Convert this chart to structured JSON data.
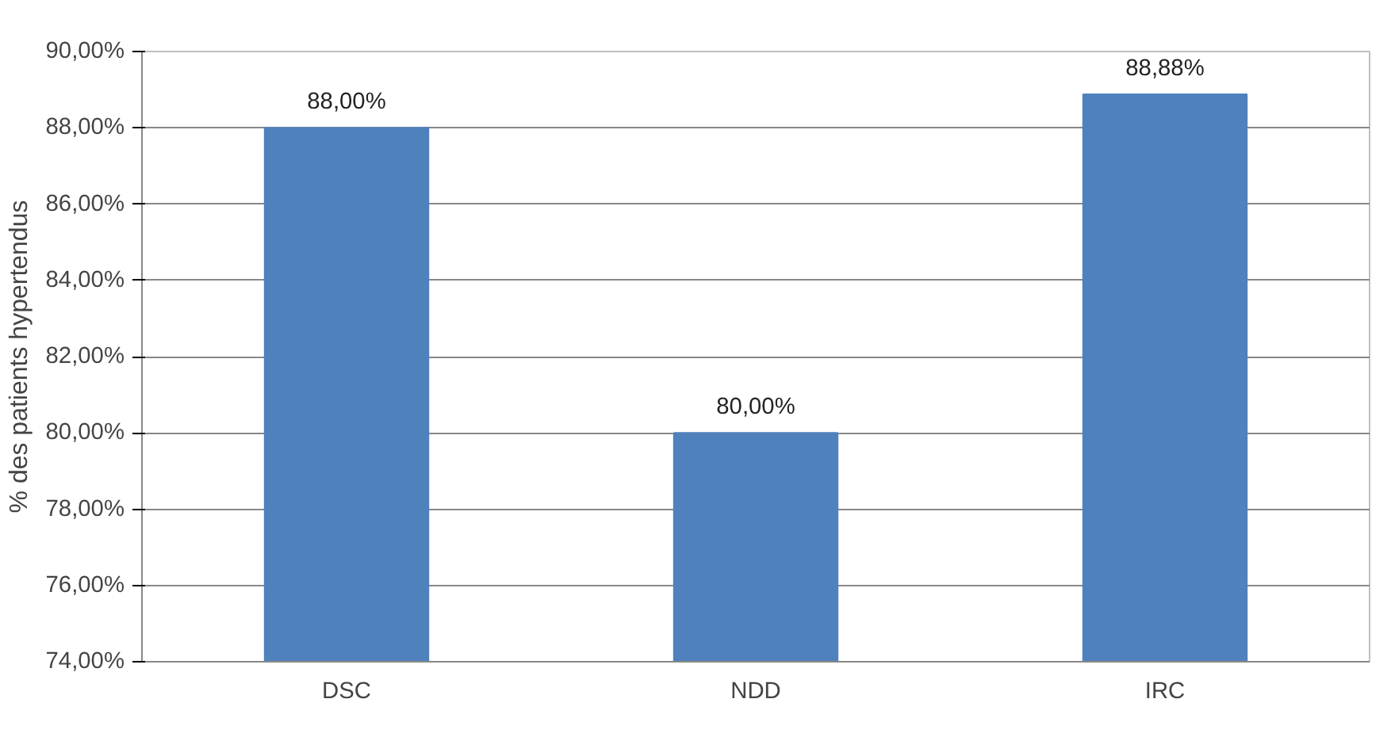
{
  "chart_data": {
    "type": "bar",
    "ylabel": "% des patients hypertendus",
    "categories": [
      "DSC",
      "NDD",
      "IRC"
    ],
    "values": [
      88.0,
      80.0,
      88.88
    ],
    "value_labels": [
      "88,00%",
      "80,00%",
      "88,88%"
    ],
    "color": "#4f81bd",
    "ylim": [
      74,
      90
    ],
    "yticks": [
      {
        "value": 74,
        "label": "74,00%"
      },
      {
        "value": 76,
        "label": "76,00%"
      },
      {
        "value": 78,
        "label": "78,00%"
      },
      {
        "value": 80,
        "label": "80,00%"
      },
      {
        "value": 82,
        "label": "82,00%"
      },
      {
        "value": 84,
        "label": "84,00%"
      },
      {
        "value": 86,
        "label": "86,00%"
      },
      {
        "value": 88,
        "label": "88,00%"
      },
      {
        "value": 90,
        "label": "90,00%"
      }
    ],
    "grid": "y"
  }
}
